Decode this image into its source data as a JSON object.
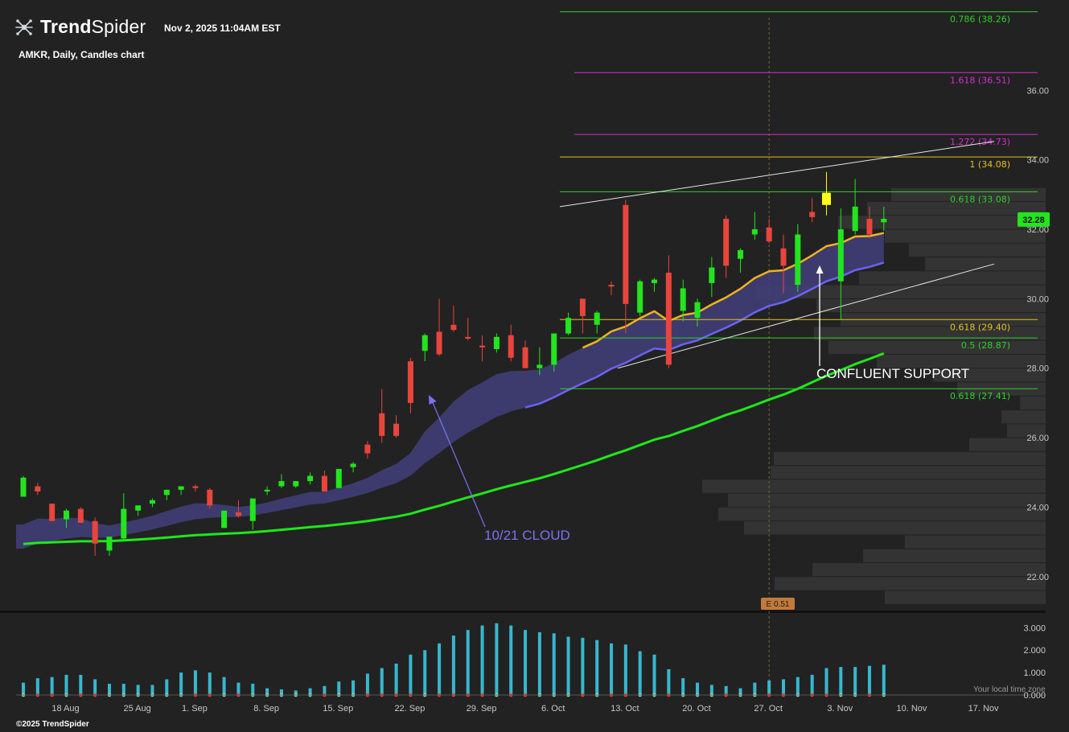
{
  "header": {
    "brand": "TrendSpider",
    "brand_bold": "Trend",
    "brand_light": "Spider",
    "timestamp": "Nov 2, 2025 11:04AM EST",
    "subtitle": "AMKR, Daily, Candles chart",
    "logo_icon": "trendspider-logo-icon"
  },
  "footer": {
    "copyright": "©2025 TrendSpider",
    "timezone_note": "Your local time zone"
  },
  "colors": {
    "background": "#222222",
    "up": "#22e51e",
    "down": "#e8453c",
    "cloud": "#42407a",
    "ema_fast": "#f2b31d",
    "ema_slow": "#6a63f2",
    "sma": "#1ee81a",
    "volume": "#36b8cf",
    "fib_green": "#2ed12a",
    "fib_magenta": "#d32fd3",
    "fib_yellow": "#e6c21e",
    "annotation_white": "#ffffff",
    "annotation_blue": "#7a72f5",
    "earnings": "#c27a3a"
  },
  "chart_data": {
    "type": "candlestick",
    "ticker": "AMKR",
    "interval": "Daily",
    "ylim": [
      21.0,
      38.6
    ],
    "price_ticks": [
      "22.00",
      "24.00",
      "26.00",
      "28.00",
      "30.00",
      "32.00",
      "34.00",
      "36.00"
    ],
    "volume_ylim": [
      0,
      3.3
    ],
    "volume_ticks": [
      "0.000",
      "1.000",
      "2.000",
      "3.000"
    ],
    "x_ticks": [
      {
        "label": "18 Aug",
        "i": 3
      },
      {
        "label": "25 Aug",
        "i": 8
      },
      {
        "label": "1. Sep",
        "i": 12
      },
      {
        "label": "8. Sep",
        "i": 17
      },
      {
        "label": "15. Sep",
        "i": 22
      },
      {
        "label": "22. Sep",
        "i": 27
      },
      {
        "label": "29. Sep",
        "i": 32
      },
      {
        "label": "6. Oct",
        "i": 37
      },
      {
        "label": "13. Oct",
        "i": 42
      },
      {
        "label": "20. Oct",
        "i": 47
      },
      {
        "label": "27. Oct",
        "i": 52
      },
      {
        "label": "3. Nov",
        "i": 57
      },
      {
        "label": "10. Nov",
        "i": 62
      },
      {
        "label": "17. Nov",
        "i": 67
      }
    ],
    "last_price": "32.28",
    "candles": [
      {
        "o": 24.3,
        "h": 24.9,
        "l": 24.3,
        "c": 24.85,
        "v": 0.55
      },
      {
        "o": 24.6,
        "h": 24.7,
        "l": 24.35,
        "c": 24.45,
        "v": 0.75
      },
      {
        "o": 24.1,
        "h": 24.1,
        "l": 23.6,
        "c": 23.6,
        "v": 0.8
      },
      {
        "o": 23.65,
        "h": 23.95,
        "l": 23.4,
        "c": 23.9,
        "v": 0.9
      },
      {
        "o": 23.95,
        "h": 24.0,
        "l": 23.55,
        "c": 23.55,
        "v": 0.9
      },
      {
        "o": 23.6,
        "h": 23.7,
        "l": 22.6,
        "c": 22.95,
        "v": 0.7
      },
      {
        "o": 22.75,
        "h": 23.1,
        "l": 22.6,
        "c": 23.15,
        "v": 0.5
      },
      {
        "o": 23.1,
        "h": 24.4,
        "l": 23.05,
        "c": 23.95,
        "v": 0.5
      },
      {
        "o": 23.9,
        "h": 24.05,
        "l": 23.75,
        "c": 24.05,
        "v": 0.45
      },
      {
        "o": 24.1,
        "h": 24.25,
        "l": 24.0,
        "c": 24.2,
        "v": 0.45
      },
      {
        "o": 24.35,
        "h": 24.5,
        "l": 24.2,
        "c": 24.5,
        "v": 0.7
      },
      {
        "o": 24.5,
        "h": 24.6,
        "l": 24.35,
        "c": 24.6,
        "v": 1.0
      },
      {
        "o": 24.6,
        "h": 24.65,
        "l": 24.45,
        "c": 24.55,
        "v": 1.1
      },
      {
        "o": 24.5,
        "h": 24.55,
        "l": 23.95,
        "c": 24.05,
        "v": 1.0
      },
      {
        "o": 23.4,
        "h": 23.8,
        "l": 23.4,
        "c": 23.9,
        "v": 0.8
      },
      {
        "o": 23.85,
        "h": 24.2,
        "l": 23.7,
        "c": 23.75,
        "v": 0.55
      },
      {
        "o": 23.6,
        "h": 24.25,
        "l": 23.35,
        "c": 24.25,
        "v": 0.5
      },
      {
        "o": 24.45,
        "h": 24.6,
        "l": 24.35,
        "c": 24.5,
        "v": 0.3
      },
      {
        "o": 24.6,
        "h": 24.95,
        "l": 24.55,
        "c": 24.75,
        "v": 0.25
      },
      {
        "o": 24.6,
        "h": 24.75,
        "l": 24.55,
        "c": 24.75,
        "v": 0.2
      },
      {
        "o": 24.75,
        "h": 25.0,
        "l": 24.65,
        "c": 24.9,
        "v": 0.3
      },
      {
        "o": 24.9,
        "h": 25.05,
        "l": 24.45,
        "c": 24.45,
        "v": 0.4
      },
      {
        "o": 24.55,
        "h": 25.1,
        "l": 24.55,
        "c": 25.1,
        "v": 0.6
      },
      {
        "o": 25.15,
        "h": 25.3,
        "l": 25.0,
        "c": 25.25,
        "v": 0.65
      },
      {
        "o": 25.8,
        "h": 25.9,
        "l": 25.4,
        "c": 25.55,
        "v": 0.95
      },
      {
        "o": 26.7,
        "h": 27.4,
        "l": 25.85,
        "c": 26.05,
        "v": 1.2
      },
      {
        "o": 26.4,
        "h": 26.65,
        "l": 26.0,
        "c": 26.05,
        "v": 1.4
      },
      {
        "o": 28.2,
        "h": 28.3,
        "l": 26.7,
        "c": 27.0,
        "v": 1.8
      },
      {
        "o": 28.5,
        "h": 29.0,
        "l": 28.2,
        "c": 28.95,
        "v": 2.0
      },
      {
        "o": 29.05,
        "h": 30.0,
        "l": 28.35,
        "c": 28.4,
        "v": 2.3
      },
      {
        "o": 29.25,
        "h": 29.8,
        "l": 29.05,
        "c": 29.1,
        "v": 2.65
      },
      {
        "o": 28.9,
        "h": 29.45,
        "l": 28.8,
        "c": 28.85,
        "v": 2.9
      },
      {
        "o": 28.65,
        "h": 28.95,
        "l": 28.2,
        "c": 28.6,
        "v": 3.1
      },
      {
        "o": 28.55,
        "h": 29.0,
        "l": 28.45,
        "c": 28.9,
        "v": 3.2
      },
      {
        "o": 28.95,
        "h": 29.25,
        "l": 28.2,
        "c": 28.3,
        "v": 3.1
      },
      {
        "o": 28.6,
        "h": 28.8,
        "l": 28.0,
        "c": 28.0,
        "v": 2.9
      },
      {
        "o": 28.0,
        "h": 28.6,
        "l": 27.8,
        "c": 28.1,
        "v": 2.8
      },
      {
        "o": 28.1,
        "h": 29.0,
        "l": 27.9,
        "c": 29.0,
        "v": 2.75
      },
      {
        "o": 29.0,
        "h": 29.6,
        "l": 28.95,
        "c": 29.45,
        "v": 2.6
      },
      {
        "o": 30.0,
        "h": 30.0,
        "l": 29.0,
        "c": 29.5,
        "v": 2.55
      },
      {
        "o": 29.25,
        "h": 29.65,
        "l": 29.0,
        "c": 29.6,
        "v": 2.45
      },
      {
        "o": 30.4,
        "h": 30.5,
        "l": 30.1,
        "c": 30.35,
        "v": 2.3
      },
      {
        "o": 32.7,
        "h": 32.85,
        "l": 29.0,
        "c": 29.85,
        "v": 2.25
      },
      {
        "o": 29.6,
        "h": 30.55,
        "l": 29.5,
        "c": 30.5,
        "v": 1.95
      },
      {
        "o": 30.45,
        "h": 30.6,
        "l": 30.2,
        "c": 30.55,
        "v": 1.8
      },
      {
        "o": 30.75,
        "h": 31.25,
        "l": 28.0,
        "c": 28.1,
        "v": 1.15
      },
      {
        "o": 29.65,
        "h": 30.55,
        "l": 29.35,
        "c": 30.3,
        "v": 0.75
      },
      {
        "o": 29.45,
        "h": 30.0,
        "l": 29.2,
        "c": 29.9,
        "v": 0.55
      },
      {
        "o": 30.45,
        "h": 31.2,
        "l": 30.05,
        "c": 30.9,
        "v": 0.45
      },
      {
        "o": 32.3,
        "h": 32.4,
        "l": 30.6,
        "c": 30.95,
        "v": 0.4
      },
      {
        "o": 31.15,
        "h": 31.45,
        "l": 30.75,
        "c": 31.4,
        "v": 0.3
      },
      {
        "o": 31.85,
        "h": 32.5,
        "l": 31.7,
        "c": 32.0,
        "v": 0.55
      },
      {
        "o": 32.05,
        "h": 32.3,
        "l": 31.6,
        "c": 31.65,
        "v": 0.65
      },
      {
        "o": 31.45,
        "h": 31.85,
        "l": 30.15,
        "c": 30.95,
        "v": 0.7
      },
      {
        "o": 30.4,
        "h": 32.15,
        "l": 30.2,
        "c": 31.85,
        "v": 0.8
      },
      {
        "o": 32.5,
        "h": 32.9,
        "l": 32.2,
        "c": 32.35,
        "v": 0.9
      },
      {
        "o": 33.05,
        "h": 33.65,
        "l": 32.4,
        "c": 32.7,
        "v": 1.2
      },
      {
        "o": 30.5,
        "h": 32.6,
        "l": 29.4,
        "c": 32.0,
        "v": 1.25
      },
      {
        "o": 31.95,
        "h": 33.45,
        "l": 31.85,
        "c": 32.65,
        "v": 1.25
      },
      {
        "o": 32.3,
        "h": 32.65,
        "l": 31.75,
        "c": 31.85,
        "v": 1.3
      },
      {
        "o": 32.2,
        "h": 32.65,
        "l": 31.95,
        "c": 32.3,
        "v": 1.35
      }
    ],
    "fib_levels": [
      {
        "label": "0.786 (38.26)",
        "price": 38.26,
        "color": "#2ed12a"
      },
      {
        "label": "1.618 (36.51)",
        "price": 36.51,
        "color": "#d32fd3"
      },
      {
        "label": "1.272 (34.73)",
        "price": 34.73,
        "color": "#d32fd3"
      },
      {
        "label": "1 (34.08)",
        "price": 34.08,
        "color": "#e6c21e"
      },
      {
        "label": "0.618 (33.08)",
        "price": 33.08,
        "color": "#2ed12a"
      },
      {
        "label": "0.618 (29.40)",
        "price": 29.4,
        "color": "#e6c21e"
      },
      {
        "label": "0.5 (28.87)",
        "price": 28.87,
        "color": "#2ed12a"
      },
      {
        "label": "0.618 (27.41)",
        "price": 27.41,
        "color": "#2ed12a"
      }
    ],
    "annotations": {
      "cloud_label": "10/21 CLOUD",
      "support_label": "CONFLUENT SUPPORT",
      "earnings_label": "E 0.51"
    }
  }
}
